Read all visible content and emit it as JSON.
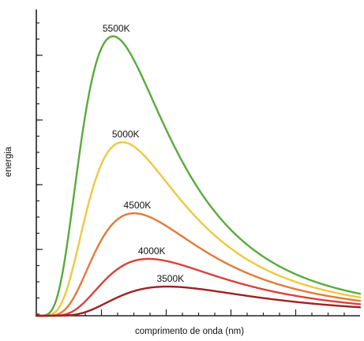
{
  "chart_data": {
    "type": "line",
    "title": "",
    "xlabel": "comprimento de onda (nm)",
    "ylabel": "energia",
    "x_tick_labels_shown": false,
    "y_tick_labels_shown": false,
    "grid": false,
    "legend": "none (curves labeled inline)",
    "series": [
      {
        "name": "5500K",
        "temperature_k": 5500,
        "color": "#5aaa3c"
      },
      {
        "name": "5000K",
        "temperature_k": 5000,
        "color": "#efc83e"
      },
      {
        "name": "4500K",
        "temperature_k": 4500,
        "color": "#e27a3a"
      },
      {
        "name": "4000K",
        "temperature_k": 4000,
        "color": "#d9413a"
      },
      {
        "name": "3500K",
        "temperature_k": 3500,
        "color": "#9b2323"
      }
    ]
  }
}
